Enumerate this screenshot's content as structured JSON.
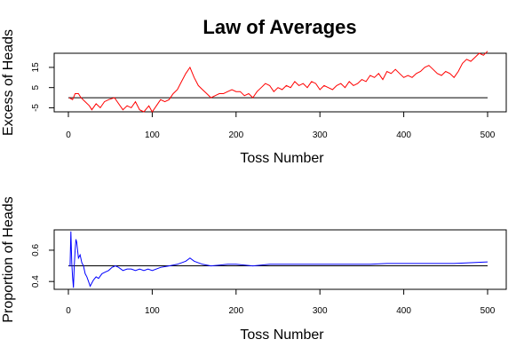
{
  "title": "Law of Averages",
  "chart_data": [
    {
      "type": "line",
      "xlabel": "Toss Number",
      "ylabel": "Excess of Heads",
      "xlim": [
        0,
        500
      ],
      "ylim": [
        -7,
        22
      ],
      "xticks": [
        0,
        100,
        200,
        300,
        400,
        500
      ],
      "yticks": [
        -5,
        5,
        15
      ],
      "hline": 0,
      "series": [
        {
          "color": "#ff0000",
          "x": [
            1,
            5,
            8,
            12,
            15,
            20,
            25,
            28,
            33,
            38,
            43,
            48,
            55,
            60,
            65,
            70,
            75,
            80,
            85,
            90,
            96,
            100,
            105,
            110,
            115,
            120,
            125,
            130,
            135,
            140,
            145,
            150,
            155,
            160,
            165,
            170,
            175,
            180,
            185,
            190,
            195,
            200,
            205,
            210,
            215,
            220,
            225,
            230,
            235,
            240,
            245,
            250,
            255,
            260,
            265,
            270,
            275,
            280,
            285,
            290,
            295,
            300,
            305,
            310,
            315,
            320,
            325,
            330,
            335,
            340,
            345,
            350,
            355,
            360,
            365,
            370,
            375,
            380,
            385,
            390,
            395,
            400,
            405,
            410,
            415,
            420,
            425,
            430,
            435,
            440,
            445,
            450,
            455,
            460,
            465,
            470,
            475,
            480,
            485,
            490,
            495,
            500
          ],
          "values": [
            0,
            -1,
            2,
            2,
            0,
            -2,
            -4,
            -6,
            -3,
            -5,
            -2,
            -1,
            0,
            -3,
            -6,
            -4,
            -5,
            -2,
            -6,
            -7,
            -4,
            -7,
            -4,
            -1,
            -2,
            -1,
            2,
            4,
            8,
            12,
            15,
            10,
            6,
            4,
            2,
            0,
            1,
            2,
            2,
            3,
            4,
            3,
            3,
            1,
            2,
            0,
            3,
            5,
            7,
            6,
            3,
            5,
            4,
            6,
            5,
            8,
            6,
            7,
            5,
            8,
            7,
            4,
            6,
            5,
            4,
            6,
            7,
            5,
            8,
            6,
            7,
            9,
            8,
            11,
            10,
            12,
            9,
            13,
            12,
            14,
            12,
            10,
            11,
            10,
            12,
            13,
            15,
            16,
            14,
            12,
            11,
            13,
            12,
            10,
            13,
            17,
            19,
            18,
            20,
            22,
            21,
            23
          ]
        }
      ]
    },
    {
      "type": "line",
      "xlabel": "Toss Number",
      "ylabel": "Proportion of Heads",
      "xlim": [
        0,
        500
      ],
      "ylim": [
        0.35,
        0.73
      ],
      "xticks": [
        0,
        100,
        200,
        300,
        400,
        500
      ],
      "yticks": [
        0.4,
        0.6
      ],
      "yticklabels": [
        "0.4",
        "0.6"
      ],
      "hline": 0.5,
      "series": [
        {
          "color": "#0000ff",
          "x": [
            1,
            2,
            3,
            4,
            5,
            6,
            7,
            8,
            9,
            10,
            12,
            14,
            16,
            18,
            20,
            22,
            24,
            26,
            28,
            30,
            33,
            36,
            40,
            44,
            48,
            52,
            56,
            60,
            65,
            70,
            75,
            80,
            85,
            90,
            95,
            100,
            110,
            120,
            130,
            140,
            145,
            150,
            160,
            170,
            180,
            190,
            200,
            220,
            240,
            260,
            280,
            300,
            320,
            340,
            360,
            380,
            400,
            420,
            440,
            460,
            480,
            500
          ],
          "values": [
            0.5,
            0.5,
            0.72,
            0.52,
            0.43,
            0.36,
            0.5,
            0.6,
            0.67,
            0.65,
            0.55,
            0.57,
            0.52,
            0.5,
            0.45,
            0.43,
            0.4,
            0.37,
            0.39,
            0.41,
            0.43,
            0.42,
            0.45,
            0.46,
            0.47,
            0.49,
            0.5,
            0.49,
            0.47,
            0.48,
            0.48,
            0.47,
            0.48,
            0.47,
            0.48,
            0.47,
            0.49,
            0.5,
            0.51,
            0.53,
            0.55,
            0.53,
            0.51,
            0.5,
            0.505,
            0.51,
            0.51,
            0.5,
            0.51,
            0.51,
            0.51,
            0.51,
            0.51,
            0.51,
            0.51,
            0.515,
            0.515,
            0.515,
            0.515,
            0.515,
            0.52,
            0.525
          ]
        }
      ]
    }
  ]
}
